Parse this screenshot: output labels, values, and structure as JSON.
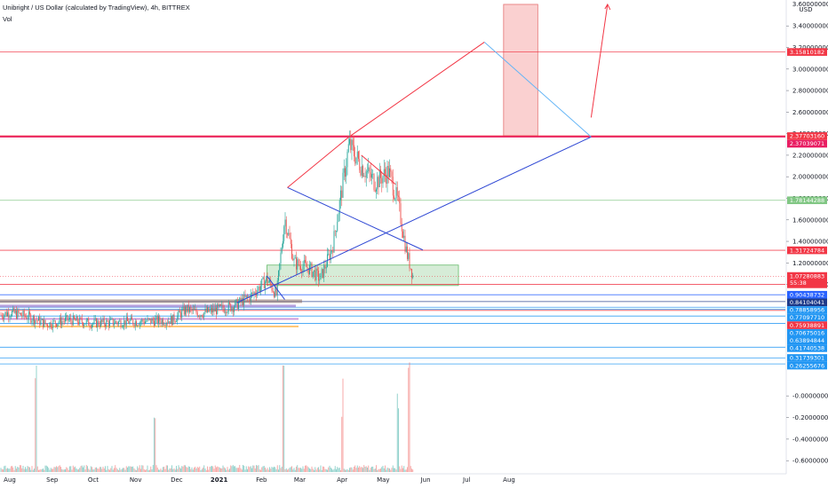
{
  "header": {
    "title": "Unibright / US Dollar (calculated by TradingView), 4h, BITTREX",
    "volume_label": "Vol"
  },
  "chart_data": {
    "type": "candlestick",
    "title": "Unibright / US Dollar (calculated by TradingView), 4h, BITTREX",
    "currency": "USD",
    "x_ticks": [
      "Aug",
      "Sep",
      "Oct",
      "Nov",
      "Dec",
      "2021",
      "Feb",
      "Mar",
      "Apr",
      "May",
      "Jun",
      "Jul",
      "Aug"
    ],
    "price_axis": {
      "ticks": [
        "3.40000000",
        "3.20000000",
        "3.00000000",
        "2.80000000",
        "2.60000000",
        "2.40000000",
        "2.20000000",
        "2.00000000",
        "1.80000000",
        "1.60000000",
        "1.40000000",
        "1.20000000",
        "1.00000000"
      ],
      "top_label": "3.60000000"
    },
    "volume_axis": {
      "ticks": [
        "-0.00000000",
        "-0.20000000",
        "-0.40000000",
        "-0.60000000"
      ]
    },
    "current_price": {
      "value": "1.07280883",
      "countdown": "55:38"
    },
    "price_tags": [
      {
        "value": "3.15810182",
        "color": "#f23645"
      },
      {
        "value": "2.37703160",
        "color": "#f23645"
      },
      {
        "value": "2.37039071",
        "color": "#e91e63"
      },
      {
        "value": "1.78144288",
        "color": "#81c784"
      },
      {
        "value": "1.31724784",
        "color": "#f23645"
      },
      {
        "value": "1.00153026",
        "color": "#f23645"
      },
      {
        "value": "0.90438732",
        "color": "#2962ff"
      },
      {
        "value": "0.84104041",
        "color": "#1e3a8a"
      },
      {
        "value": "0.78858956",
        "color": "#2196f3"
      },
      {
        "value": "0.77097710",
        "color": "#2196f3"
      },
      {
        "value": "0.75938891",
        "color": "#f23645"
      },
      {
        "value": "0.70675016",
        "color": "#2196f3"
      },
      {
        "value": "0.63894844",
        "color": "#2196f3"
      },
      {
        "value": "0.41740538",
        "color": "#2196f3"
      },
      {
        "value": "0.31739301",
        "color": "#2196f3"
      },
      {
        "value": "0.26255676",
        "color": "#2196f3"
      }
    ],
    "price_path": [
      {
        "date": "2020-07-20",
        "price": 0.7
      },
      {
        "date": "2020-08-01",
        "price": 0.74
      },
      {
        "date": "2020-08-15",
        "price": 0.7
      },
      {
        "date": "2020-08-28",
        "price": 0.63
      },
      {
        "date": "2020-09-12",
        "price": 0.67
      },
      {
        "date": "2020-10-01",
        "price": 0.64
      },
      {
        "date": "2020-10-20",
        "price": 0.65
      },
      {
        "date": "2020-11-10",
        "price": 0.66
      },
      {
        "date": "2020-11-28",
        "price": 0.67
      },
      {
        "date": "2020-12-08",
        "price": 0.77
      },
      {
        "date": "2020-12-18",
        "price": 0.73
      },
      {
        "date": "2021-01-01",
        "price": 0.77
      },
      {
        "date": "2021-01-12",
        "price": 0.8
      },
      {
        "date": "2021-01-25",
        "price": 0.9
      },
      {
        "date": "2021-02-05",
        "price": 1.05
      },
      {
        "date": "2021-02-12",
        "price": 0.9
      },
      {
        "date": "2021-02-18",
        "price": 1.62
      },
      {
        "date": "2021-02-25",
        "price": 1.2
      },
      {
        "date": "2021-03-08",
        "price": 1.15
      },
      {
        "date": "2021-03-16",
        "price": 1.05
      },
      {
        "date": "2021-03-25",
        "price": 1.35
      },
      {
        "date": "2021-04-01",
        "price": 1.9
      },
      {
        "date": "2021-04-06",
        "price": 2.3
      },
      {
        "date": "2021-04-15",
        "price": 2.1
      },
      {
        "date": "2021-04-25",
        "price": 1.95
      },
      {
        "date": "2021-05-05",
        "price": 2.05
      },
      {
        "date": "2021-05-12",
        "price": 1.75
      },
      {
        "date": "2021-05-18",
        "price": 1.3
      },
      {
        "date": "2021-05-23",
        "price": 1.07
      }
    ],
    "annotations": {
      "rectangles": [
        {
          "name": "target-zone",
          "x0": "2021-07-28",
          "x1": "2021-08-22",
          "y0": 2.38,
          "y1": 3.6,
          "color": "#f7b0b0"
        },
        {
          "name": "support-zone",
          "x0": "2021-02-05",
          "x1": "2021-06-25",
          "y0": 0.99,
          "y1": 1.18,
          "color": "#c8e6c9"
        }
      ],
      "lines": [
        {
          "name": "ascending-trendline",
          "from": {
            "date": "2021-01-14",
            "price": 0.83
          },
          "to": {
            "date": "2021-09-30",
            "price": 2.37
          },
          "color": "#2f48d4"
        },
        {
          "name": "descending-trendline",
          "from": {
            "date": "2021-02-20",
            "price": 1.9
          },
          "to": {
            "date": "2021-05-30",
            "price": 1.32
          },
          "color": "#2f48d4"
        },
        {
          "name": "projection-up",
          "from": {
            "date": "2021-02-20",
            "price": 1.9
          },
          "to": {
            "date": "2021-04-06",
            "price": 2.37
          },
          "color": "#f23645"
        },
        {
          "name": "projection-up-2",
          "from": {
            "date": "2021-04-06",
            "price": 2.37
          },
          "to": {
            "date": "2021-07-14",
            "price": 3.25
          },
          "color": "#f23645"
        },
        {
          "name": "projection-down",
          "from": {
            "date": "2021-07-14",
            "price": 3.25
          },
          "to": {
            "date": "2021-09-30",
            "price": 2.37
          },
          "color": "#64b5f6"
        },
        {
          "name": "breakout-arrow",
          "from": {
            "date": "2021-09-30",
            "price": 2.55
          },
          "to": {
            "date": "2021-10-12",
            "price": 3.6
          },
          "color": "#f23645"
        }
      ]
    },
    "volume_spike_dates": [
      "2020-08-20",
      "2020-11-15",
      "2021-02-17",
      "2021-04-01",
      "2021-05-12",
      "2021-05-20"
    ]
  }
}
